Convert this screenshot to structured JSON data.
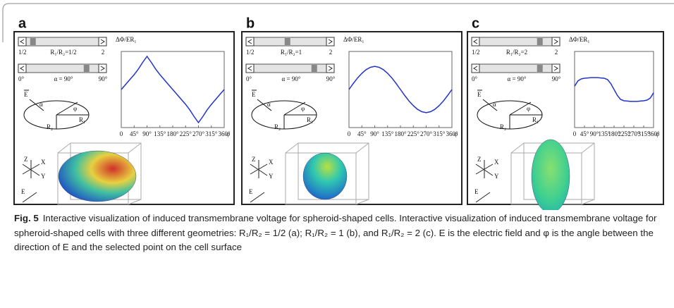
{
  "labels": {
    "x": "X",
    "y": "Y",
    "z": "Z",
    "e": "E",
    "alpha": "α",
    "phi": "φ",
    "r1": "R₁",
    "r2": "R₂"
  },
  "panels": [
    {
      "letter": "a",
      "slider1": {
        "min": "1/2",
        "max": "2",
        "label": "R₁/R₂=1/2"
      },
      "slider2": {
        "min": "0°",
        "max": "90°",
        "label": "α = 90°"
      },
      "chart_data": {
        "type": "line",
        "y_label": "ΔΦ/ER₁",
        "x_label": "φ",
        "color": "#2233cc",
        "x": [
          0,
          15,
          30,
          45,
          60,
          75,
          90,
          105,
          120,
          135,
          150,
          165,
          180,
          195,
          210,
          225,
          240,
          255,
          270,
          285,
          300,
          315,
          330,
          345,
          360
        ],
        "values": [
          0,
          0.15,
          0.3,
          0.45,
          0.62,
          0.82,
          1.0,
          0.82,
          0.62,
          0.45,
          0.3,
          0.15,
          0,
          -0.15,
          -0.3,
          -0.45,
          -0.62,
          -0.82,
          -1.0,
          -0.82,
          -0.62,
          -0.45,
          -0.3,
          -0.15,
          0
        ],
        "xlim": [
          0,
          360
        ],
        "ylim": [
          -1.15,
          1.15
        ],
        "xticks": [
          0,
          {
            "value": 45,
            "label": "45°"
          },
          {
            "value": 90,
            "label": "90°"
          },
          {
            "value": 135,
            "label": "135°"
          },
          {
            "value": 180,
            "label": "180°"
          },
          {
            "value": 225,
            "label": "225°"
          },
          {
            "value": 270,
            "label": "270°"
          },
          {
            "value": 315,
            "label": "315°"
          },
          {
            "value": 360,
            "label": "360°"
          }
        ]
      }
    },
    {
      "letter": "b",
      "slider1": {
        "min": "1/2",
        "max": "2",
        "label": "R₁/R₂=1"
      },
      "slider2": {
        "min": "0°",
        "max": "90°",
        "label": "α = 90°"
      },
      "chart_data": {
        "type": "line",
        "y_label": "ΔΦ/ER₁",
        "x_label": "φ",
        "color": "#2233cc",
        "x": [
          0,
          15,
          30,
          45,
          60,
          75,
          90,
          105,
          120,
          135,
          150,
          165,
          180,
          195,
          210,
          225,
          240,
          255,
          270,
          285,
          300,
          315,
          330,
          345,
          360
        ],
        "values": [
          0,
          0.18,
          0.35,
          0.49,
          0.6,
          0.67,
          0.7,
          0.67,
          0.6,
          0.49,
          0.35,
          0.18,
          0,
          -0.18,
          -0.35,
          -0.49,
          -0.6,
          -0.67,
          -0.7,
          -0.67,
          -0.6,
          -0.49,
          -0.35,
          -0.18,
          0
        ],
        "xlim": [
          0,
          360
        ],
        "ylim": [
          -1.15,
          1.15
        ],
        "xticks": [
          0,
          {
            "value": 45,
            "label": "45°"
          },
          {
            "value": 90,
            "label": "90°"
          },
          {
            "value": 135,
            "label": "135°"
          },
          {
            "value": 180,
            "label": "180°"
          },
          {
            "value": 225,
            "label": "225°"
          },
          {
            "value": 270,
            "label": "270°"
          },
          {
            "value": 315,
            "label": "315°"
          },
          {
            "value": 360,
            "label": "360°"
          }
        ]
      }
    },
    {
      "letter": "c",
      "slider1": {
        "min": "1/2",
        "max": "2",
        "label": "R₁/R₂=2"
      },
      "slider2": {
        "min": "0°",
        "max": "90°",
        "label": "α = 90°"
      },
      "chart_data": {
        "type": "line",
        "y_label": "ΔΦ/ER₁",
        "x_label": "φ",
        "color": "#2233cc",
        "x": [
          0,
          15,
          30,
          45,
          60,
          75,
          90,
          105,
          120,
          135,
          150,
          165,
          180,
          195,
          210,
          225,
          240,
          255,
          270,
          285,
          300,
          315,
          330,
          345,
          360
        ],
        "values": [
          0.1,
          0.26,
          0.32,
          0.34,
          0.35,
          0.36,
          0.36,
          0.36,
          0.35,
          0.34,
          0.3,
          0.18,
          0,
          -0.18,
          -0.3,
          -0.34,
          -0.35,
          -0.36,
          -0.36,
          -0.36,
          -0.35,
          -0.34,
          -0.32,
          -0.26,
          -0.1
        ],
        "xlim": [
          0,
          360
        ],
        "ylim": [
          -1.15,
          1.15
        ],
        "xticks": [
          0,
          {
            "value": 45,
            "label": "45°"
          },
          {
            "value": 90,
            "label": "90°"
          },
          {
            "value": 135,
            "label": "135°"
          },
          {
            "value": 180,
            "label": "180°"
          },
          {
            "value": 225,
            "label": "225°"
          },
          {
            "value": 270,
            "label": "270°"
          },
          {
            "value": 315,
            "label": "315°"
          },
          {
            "value": 360,
            "label": "360°"
          }
        ]
      }
    }
  ],
  "caption": {
    "label": "Fig. 5",
    "text": "Interactive visualization of induced transmembrane voltage for spheroid-shaped cells. Interactive visualization of induced transmembrane voltage for spheroid-shaped cells with three different geometries: R₁/R₂ = 1/2 (a); R₁/R₂ = 1 (b), and R₁/R₂ = 2 (c). E is the electric field and φ is the angle between the direction of E and the selected point on the cell surface"
  }
}
